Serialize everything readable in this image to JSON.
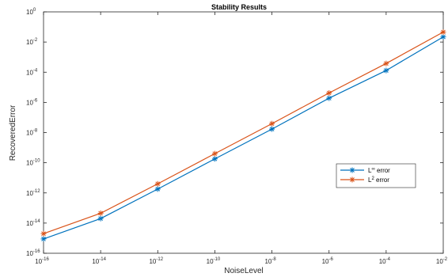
{
  "chart_data": {
    "type": "line",
    "title": "Stability Results",
    "xlabel": "NoiseLevel",
    "ylabel": "RecoveredError",
    "x_scale": "log",
    "y_scale": "log",
    "xlim": [
      1e-16,
      0.01
    ],
    "ylim": [
      1e-16,
      1
    ],
    "x_tick_labels": [
      {
        "base": "10",
        "exp": "-16"
      },
      {
        "base": "10",
        "exp": "-14"
      },
      {
        "base": "10",
        "exp": "-12"
      },
      {
        "base": "10",
        "exp": "-10"
      },
      {
        "base": "10",
        "exp": "-8"
      },
      {
        "base": "10",
        "exp": "-6"
      },
      {
        "base": "10",
        "exp": "-4"
      },
      {
        "base": "10",
        "exp": "-2"
      }
    ],
    "y_tick_labels": [
      {
        "base": "10",
        "exp": "0"
      },
      {
        "base": "10",
        "exp": "-2"
      },
      {
        "base": "10",
        "exp": "-4"
      },
      {
        "base": "10",
        "exp": "-6"
      },
      {
        "base": "10",
        "exp": "-8"
      },
      {
        "base": "10",
        "exp": "-10"
      },
      {
        "base": "10",
        "exp": "-12"
      },
      {
        "base": "10",
        "exp": "-14"
      },
      {
        "base": "10",
        "exp": "-16"
      }
    ],
    "grid": false,
    "legend_position": "right",
    "x": [
      1e-16,
      1e-14,
      1e-12,
      1e-10,
      1e-08,
      1e-06,
      0.0001,
      0.01
    ],
    "series": [
      {
        "legend": {
          "prefix": "L",
          "sup": "∞",
          "suffix": " error"
        },
        "color": "#0072BD",
        "marker": "asterisk",
        "values": [
          8.9e-16,
          2e-14,
          1.8e-12,
          1.8e-10,
          1.7e-08,
          1.9e-06,
          0.00013,
          0.022
        ]
      },
      {
        "legend": {
          "prefix": "L",
          "sup": "2",
          "suffix": " error"
        },
        "color": "#D95319",
        "marker": "asterisk",
        "values": [
          2e-15,
          4.5e-14,
          4e-12,
          4e-10,
          3.9e-08,
          4.2e-06,
          0.00038,
          0.046
        ]
      }
    ]
  }
}
